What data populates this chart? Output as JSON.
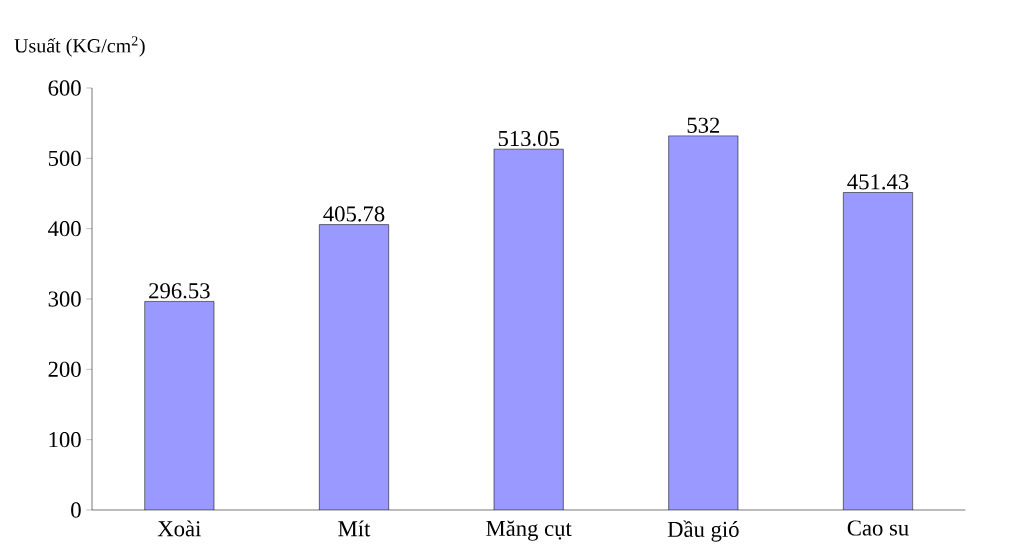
{
  "chart_data": {
    "type": "bar",
    "ylabel": "Usuất (KG/cm$^{2}$)",
    "categories": [
      "Xoài",
      "Mít",
      "Măng cụt",
      "Dầu gió",
      "Cao su"
    ],
    "values": [
      296.53,
      405.78,
      513.05,
      532,
      451.43
    ],
    "value_labels": [
      "296.53",
      "405.78",
      "513.05",
      "532",
      "451.43"
    ],
    "color": "#9999ff",
    "ylim": [
      0,
      600
    ],
    "yticks": [
      0,
      100,
      200,
      300,
      400,
      500,
      600
    ]
  }
}
